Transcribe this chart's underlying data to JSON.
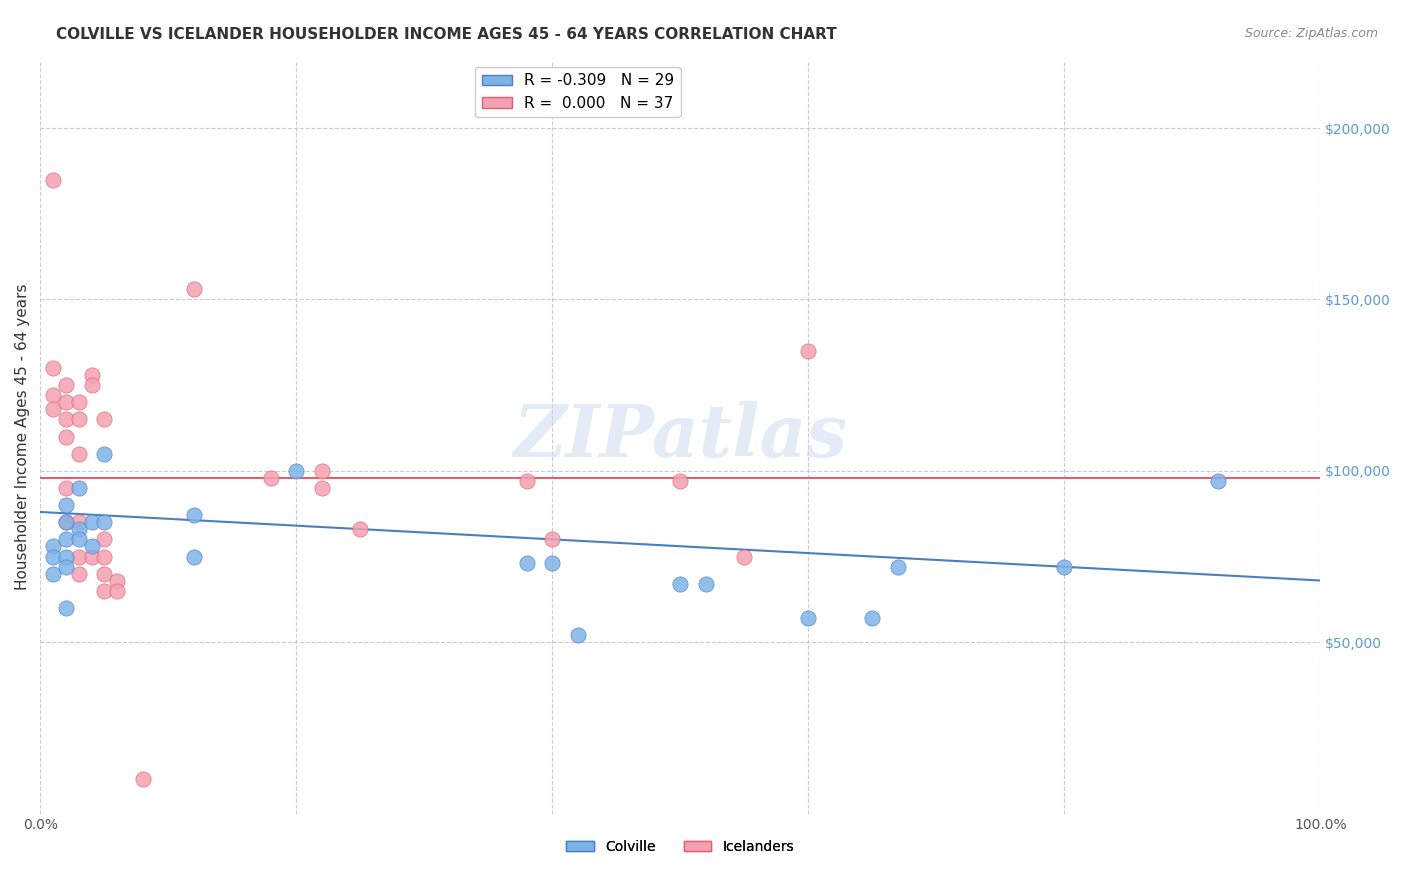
{
  "title": "COLVILLE VS ICELANDER HOUSEHOLDER INCOME AGES 45 - 64 YEARS CORRELATION CHART",
  "source": "Source: ZipAtlas.com",
  "xlabel": "",
  "ylabel": "Householder Income Ages 45 - 64 years",
  "xlim": [
    0,
    1.0
  ],
  "ylim": [
    0,
    220000
  ],
  "ytick_values": [
    50000,
    100000,
    150000,
    200000
  ],
  "background_color": "#ffffff",
  "grid_color": "#cccccc",
  "colville_color": "#7fb3e8",
  "icelander_color": "#f4a0b0",
  "colville_line_color": "#4a7fc1",
  "icelander_line_color": "#e06070",
  "legend_R_colville": "-0.309",
  "legend_N_colville": "29",
  "legend_R_icelander": "0.000",
  "legend_N_icelander": "37",
  "colville_points_x": [
    0.01,
    0.01,
    0.01,
    0.02,
    0.02,
    0.02,
    0.02,
    0.02,
    0.02,
    0.03,
    0.03,
    0.03,
    0.04,
    0.04,
    0.05,
    0.05,
    0.12,
    0.12,
    0.2,
    0.38,
    0.4,
    0.42,
    0.5,
    0.52,
    0.6,
    0.65,
    0.67,
    0.8,
    0.92
  ],
  "colville_points_y": [
    78000,
    75000,
    70000,
    90000,
    85000,
    80000,
    75000,
    72000,
    60000,
    95000,
    83000,
    80000,
    85000,
    78000,
    105000,
    85000,
    87000,
    75000,
    100000,
    73000,
    73000,
    52000,
    67000,
    67000,
    57000,
    57000,
    72000,
    72000,
    97000
  ],
  "icelander_points_x": [
    0.01,
    0.01,
    0.01,
    0.01,
    0.02,
    0.02,
    0.02,
    0.02,
    0.02,
    0.02,
    0.03,
    0.03,
    0.03,
    0.03,
    0.03,
    0.03,
    0.04,
    0.04,
    0.04,
    0.05,
    0.05,
    0.05,
    0.05,
    0.05,
    0.06,
    0.06,
    0.12,
    0.18,
    0.22,
    0.22,
    0.25,
    0.38,
    0.4,
    0.5,
    0.55,
    0.6,
    0.08
  ],
  "icelander_points_y": [
    185000,
    130000,
    122000,
    118000,
    125000,
    120000,
    115000,
    110000,
    95000,
    85000,
    120000,
    115000,
    105000,
    85000,
    75000,
    70000,
    128000,
    125000,
    75000,
    115000,
    80000,
    75000,
    70000,
    65000,
    68000,
    65000,
    153000,
    98000,
    100000,
    95000,
    83000,
    97000,
    80000,
    97000,
    75000,
    135000,
    10000
  ],
  "colville_trendline_x": [
    0.0,
    1.0
  ],
  "colville_trendline_y": [
    88000,
    68000
  ],
  "icelander_trendline_x": [
    0.0,
    1.0
  ],
  "icelander_trendline_y": [
    98000,
    98000
  ],
  "watermark": "ZIPatlas",
  "marker_size": 120
}
